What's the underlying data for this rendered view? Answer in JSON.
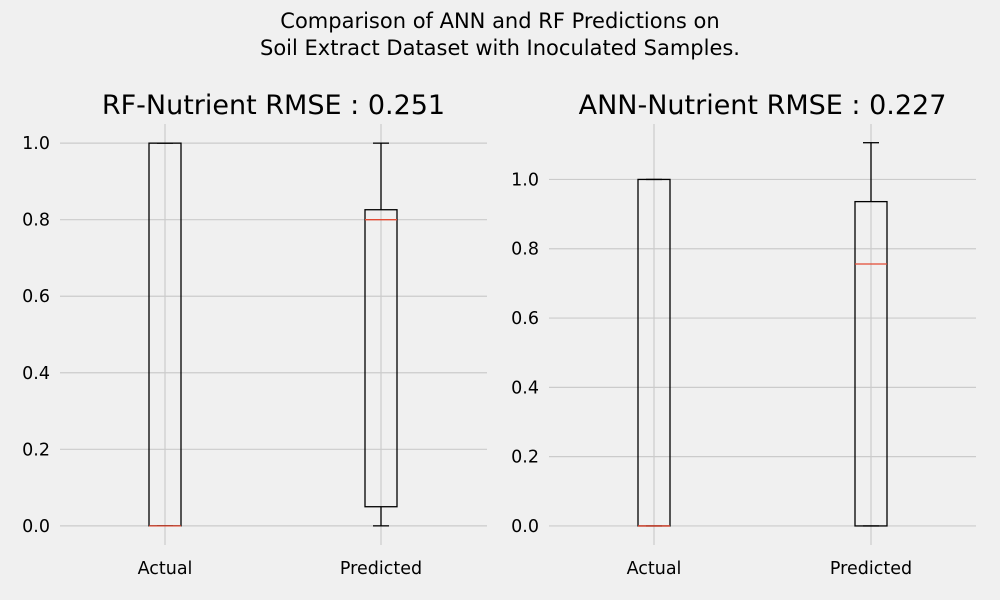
{
  "figure": {
    "suptitle_line1": "Comparison of ANN and RF Predictions on",
    "suptitle_line2": "Soil Extract Dataset with Inoculated Samples.",
    "background": "#f0f0f0"
  },
  "chart_data": [
    {
      "type": "boxplot",
      "title": "RF-Nutrient RMSE : 0.251",
      "categories": [
        "Actual",
        "Predicted"
      ],
      "boxes": [
        {
          "whisker_low": 0.0,
          "q1": 0.0,
          "median": 0.0,
          "q3": 1.0,
          "whisker_high": 1.0
        },
        {
          "whisker_low": 0.0,
          "q1": 0.05,
          "median": 0.8,
          "q3": 0.826,
          "whisker_high": 1.0
        }
      ],
      "yticks": [
        "0.0",
        "0.2",
        "0.4",
        "0.6",
        "0.8",
        "1.0"
      ],
      "ylim": [
        -0.05,
        1.05
      ],
      "grid": true,
      "box_color": "#000000",
      "median_color": "#e24a33"
    },
    {
      "type": "boxplot",
      "title": "ANN-Nutrient RMSE : 0.227",
      "categories": [
        "Actual",
        "Predicted"
      ],
      "boxes": [
        {
          "whisker_low": 0.0,
          "q1": 0.0,
          "median": 0.0,
          "q3": 1.0,
          "whisker_high": 1.0
        },
        {
          "whisker_low": 0.0,
          "q1": 0.0,
          "median": 0.756,
          "q3": 0.936,
          "whisker_high": 1.106
        }
      ],
      "yticks": [
        "0.0",
        "0.2",
        "0.4",
        "0.6",
        "0.8",
        "1.0"
      ],
      "ylim": [
        -0.055,
        1.16
      ],
      "grid": true,
      "box_color": "#000000",
      "median_color": "#e24a33"
    }
  ]
}
